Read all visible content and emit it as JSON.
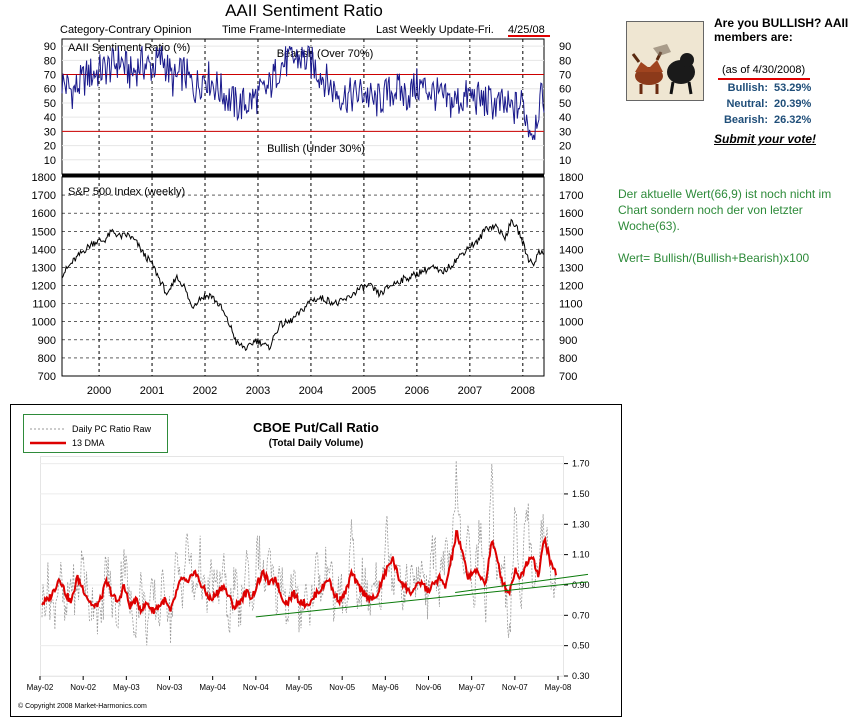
{
  "aaii": {
    "title": "AAII Sentiment Ratio",
    "subtitle_left": "Category-Contrary Opinion",
    "subtitle_mid": "Time Frame-Intermediate",
    "subtitle_right_prefix": "Last Weekly Update-Fri.",
    "subtitle_right_date": "4/25/08",
    "colors": {
      "frame": "#000000",
      "ratio_line": "#1a1a8c",
      "sp_line": "#000000",
      "threshold": "#cc0000",
      "underline": "#e00000"
    }
  },
  "chart_data": [
    {
      "type": "line",
      "title": "AAII Sentiment Ratio (%)",
      "ylim": [
        0,
        95
      ],
      "yticks": [
        10,
        20,
        30,
        40,
        50,
        60,
        70,
        80,
        90
      ],
      "xlim": [
        1999.3,
        2008.4
      ],
      "x_tick_labels": [
        "2000",
        "2001",
        "2002",
        "2003",
        "2004",
        "2005",
        "2006",
        "2007",
        "2008"
      ],
      "x_tick_positions": [
        2000,
        2001,
        2002,
        2003,
        2004,
        2005,
        2006,
        2007,
        2008
      ],
      "annotations": [
        {
          "text": "Bearish (Over 70%)",
          "y": 70
        },
        {
          "text": "Bullish (Under 30%)",
          "y": 30
        }
      ],
      "anchors_x": [
        1999.3,
        1999.5,
        1999.8,
        2000.0,
        2000.2,
        2000.4,
        2000.6,
        2000.8,
        2001.0,
        2001.2,
        2001.4,
        2001.6,
        2001.8,
        2002.0,
        2002.2,
        2002.4,
        2002.6,
        2002.8,
        2003.0,
        2003.2,
        2003.4,
        2003.6,
        2003.8,
        2004.0,
        2004.2,
        2004.4,
        2004.6,
        2004.8,
        2005.0,
        2005.2,
        2005.4,
        2005.6,
        2005.8,
        2006.0,
        2006.2,
        2006.4,
        2006.6,
        2006.8,
        2007.0,
        2007.2,
        2007.4,
        2007.6,
        2007.8,
        2008.0,
        2008.1,
        2008.2,
        2008.3,
        2008.4
      ],
      "anchors_y": [
        65,
        58,
        70,
        72,
        75,
        80,
        70,
        78,
        75,
        82,
        65,
        72,
        60,
        70,
        62,
        55,
        48,
        50,
        55,
        60,
        76,
        80,
        82,
        78,
        70,
        60,
        55,
        55,
        58,
        50,
        55,
        60,
        55,
        62,
        60,
        55,
        50,
        52,
        55,
        52,
        50,
        48,
        45,
        50,
        35,
        30,
        48,
        55
      ]
    },
    {
      "type": "line",
      "title": "S&P 500 Index (weekly)",
      "ylim": [
        700,
        1800
      ],
      "yticks": [
        700,
        800,
        900,
        1000,
        1100,
        1200,
        1300,
        1400,
        1500,
        1600,
        1700,
        1800
      ],
      "xlim": [
        1999.3,
        2008.4
      ],
      "x_tick_labels": [
        "2000",
        "2001",
        "2002",
        "2003",
        "2004",
        "2005",
        "2006",
        "2007",
        "2008"
      ],
      "x_tick_positions": [
        2000,
        2001,
        2002,
        2003,
        2004,
        2005,
        2006,
        2007,
        2008
      ],
      "x": [
        1999.3,
        1999.5,
        1999.7,
        1999.9,
        2000.1,
        2000.25,
        2000.4,
        2000.55,
        2000.7,
        2000.85,
        2001.0,
        2001.2,
        2001.3,
        2001.45,
        2001.6,
        2001.75,
        2001.9,
        2002.1,
        2002.3,
        2002.5,
        2002.6,
        2002.8,
        2002.95,
        2003.1,
        2003.2,
        2003.4,
        2003.6,
        2003.8,
        2004.0,
        2004.2,
        2004.5,
        2004.7,
        2004.9,
        2005.1,
        2005.3,
        2005.5,
        2005.7,
        2005.9,
        2006.1,
        2006.3,
        2006.45,
        2006.6,
        2006.8,
        2007.0,
        2007.15,
        2007.3,
        2007.5,
        2007.65,
        2007.8,
        2007.95,
        2008.1,
        2008.2,
        2008.3,
        2008.4
      ],
      "values": [
        1260,
        1330,
        1390,
        1440,
        1450,
        1500,
        1470,
        1480,
        1440,
        1370,
        1320,
        1200,
        1140,
        1250,
        1200,
        1080,
        1130,
        1150,
        1080,
        960,
        880,
        850,
        900,
        880,
        850,
        980,
        1000,
        1050,
        1120,
        1130,
        1100,
        1130,
        1180,
        1200,
        1150,
        1200,
        1230,
        1250,
        1280,
        1300,
        1270,
        1300,
        1360,
        1420,
        1440,
        1520,
        1530,
        1460,
        1560,
        1480,
        1350,
        1320,
        1380,
        1390
      ]
    },
    {
      "type": "line",
      "title": "CBOE Put/Call Ratio",
      "subtitle": "(Total Daily Volume)",
      "ylim": [
        0.3,
        1.75
      ],
      "yticks": [
        "1.70",
        "1.50",
        "1.30",
        "1.10",
        "0.90",
        "0.70",
        "0.50",
        "0.30"
      ],
      "ytick_values": [
        1.7,
        1.5,
        1.3,
        1.1,
        0.9,
        0.7,
        0.5,
        0.3
      ],
      "x_tick_labels": [
        "May-02",
        "Nov-02",
        "May-03",
        "Nov-03",
        "May-04",
        "Nov-04",
        "May-05",
        "Nov-05",
        "May-06",
        "Nov-06",
        "May-07",
        "Nov-07",
        "May-08"
      ],
      "legend": [
        {
          "name": "Daily PC Ratio Raw",
          "style": "dashed",
          "color": "#999999"
        },
        {
          "name": "13 DMA",
          "style": "solid",
          "color": "#dd0000"
        }
      ],
      "series": [
        {
          "name": "13 DMA",
          "values": [
            0.78,
            0.8,
            0.86,
            0.95,
            0.85,
            0.78,
            0.95,
            0.88,
            0.8,
            0.75,
            0.8,
            0.92,
            0.84,
            0.78,
            0.9,
            0.76,
            0.8,
            0.74,
            0.78,
            0.73,
            0.76,
            0.8,
            0.72,
            0.85,
            0.95,
            0.9,
            1.0,
            0.92,
            0.85,
            0.8,
            0.85,
            0.9,
            0.82,
            0.75,
            0.8,
            0.85,
            0.82,
            0.92,
            0.98,
            0.9,
            0.95,
            0.82,
            0.78,
            0.85,
            0.8,
            0.78,
            0.78,
            0.85,
            0.88,
            0.95,
            0.84,
            0.8,
            0.85,
            0.98,
            0.9,
            0.85,
            0.82,
            0.8,
            0.9,
            1.0,
            1.08,
            0.95,
            0.9,
            0.85,
            0.88,
            0.92,
            0.86,
            0.9,
            0.95,
            0.88,
            1.05,
            1.25,
            1.1,
            0.95,
            1.0,
            0.95,
            0.92,
            1.2,
            1.05,
            0.9,
            0.85,
            1.0,
            0.95,
            1.05,
            1.1,
            0.95,
            1.22,
            1.05,
            0.98
          ]
        },
        {
          "name": "Daily PC Ratio Raw",
          "values": [
            0.78,
            0.9,
            0.7,
            1.0,
            0.65,
            0.95,
            0.8,
            1.1,
            0.72,
            0.85,
            0.6,
            1.05,
            0.8,
            0.7,
            1.15,
            0.75,
            0.68,
            0.9,
            0.62,
            0.85,
            0.7,
            0.95,
            0.65,
            1.05,
            0.88,
            1.2,
            0.8,
            1.1,
            0.75,
            0.95,
            0.85,
            1.0,
            0.7,
            0.9,
            0.68,
            1.1,
            0.75,
            1.15,
            0.9,
            1.05,
            0.8,
            1.0,
            0.72,
            0.95,
            0.7,
            0.85,
            0.75,
            1.05,
            0.8,
            1.15,
            0.75,
            0.9,
            0.7,
            1.2,
            0.8,
            0.95,
            0.75,
            1.0,
            0.85,
            1.25,
            0.95,
            1.1,
            0.8,
            1.0,
            0.85,
            1.05,
            0.8,
            1.15,
            0.9,
            1.1,
            0.95,
            1.7,
            0.9,
            1.2,
            0.85,
            1.3,
            0.75,
            1.55,
            0.95,
            1.1,
            0.55,
            1.35,
            0.85,
            1.45,
            0.95,
            1.1,
            1.3,
            1.0,
            0.9
          ]
        }
      ],
      "trendlines": [
        {
          "from": [
            0.0,
            0.69
          ],
          "to": [
            1.0,
            0.92
          ],
          "color": "#0a7a0a"
        },
        {
          "from": [
            0.6,
            0.85
          ],
          "to": [
            1.0,
            0.97
          ],
          "color": "#0a7a0a"
        }
      ],
      "copyright": "© Copyright 2008 Market-Harmonics.com"
    }
  ],
  "sidebar": {
    "title": "Are you BULLISH? AAII members are:",
    "as_of": "(as of 4/30/2008)",
    "rows": [
      {
        "label": "Bullish:",
        "value": "53.29%"
      },
      {
        "label": "Neutral:",
        "value": "20.39%"
      },
      {
        "label": "Bearish:",
        "value": "26.32%"
      }
    ],
    "vote_link": "Submit your vote!",
    "image_icon": "bull-bear-icon"
  },
  "note": {
    "line1": "Der aktuelle Wert(66,9) ist noch nicht im Chart sondern noch der von letzter Woche(63).",
    "line2": "Wert= Bullish/(Bullish+Bearish)x100"
  }
}
